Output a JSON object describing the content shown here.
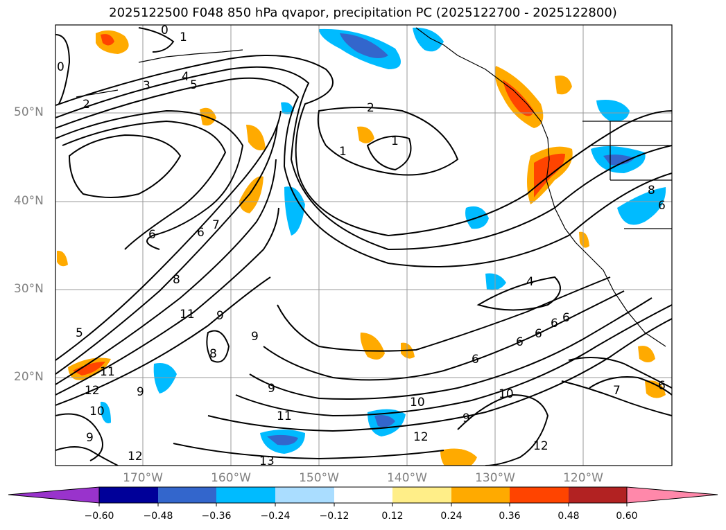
{
  "title": "2025122500 F048 850 hPa qvapor, precipitation PC (2025122700 - 2025122800)",
  "latitude_labels": [
    "50°N",
    "40°N",
    "30°N",
    "20°N"
  ],
  "longitude_labels": [
    "170°W",
    "160°W",
    "150°W",
    "140°W",
    "130°W",
    "120°W"
  ],
  "colorbar": {
    "ticks": [
      "−0.60",
      "−0.48",
      "−0.36",
      "−0.24",
      "−0.12",
      "0.12",
      "0.24",
      "0.36",
      "0.48",
      "0.60"
    ],
    "colors": [
      "#9933cc",
      "#000099",
      "#3366cc",
      "#00bbff",
      "#aaddff",
      "#ffffff",
      "#ffee88",
      "#ffaa00",
      "#ff4400",
      "#b22222",
      "#ff88aa"
    ]
  },
  "contour_labels": [
    "0",
    "1",
    "2",
    "3",
    "4",
    "5",
    "0",
    "2",
    "1",
    "1",
    "6",
    "7",
    "8",
    "6",
    "5",
    "9",
    "11",
    "9",
    "8",
    "9",
    "11",
    "12",
    "10",
    "9",
    "9",
    "12",
    "11",
    "10",
    "13",
    "9",
    "10",
    "12",
    "12",
    "4",
    "6",
    "6",
    "6",
    "6",
    "6",
    "7",
    "6",
    "6",
    "8"
  ]
}
